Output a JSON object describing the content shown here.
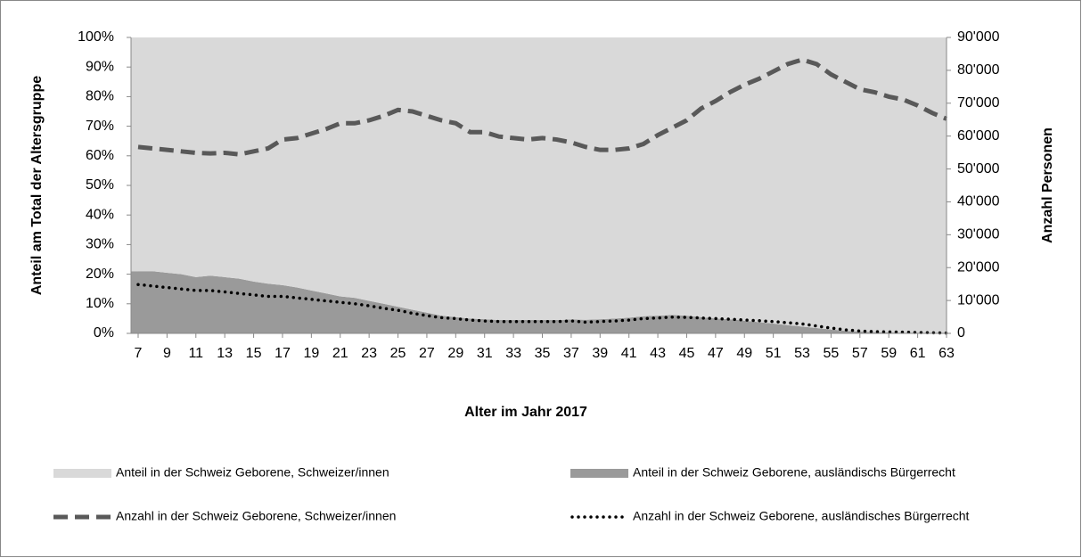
{
  "chart_data": {
    "type": "area",
    "x_label": "Alter im Jahr 2017",
    "y_label": "Anteil am Total der Altersgruppe",
    "y2_label": "Anzahl Personen",
    "x": [
      7,
      8,
      9,
      10,
      11,
      12,
      13,
      14,
      15,
      16,
      17,
      18,
      19,
      20,
      21,
      22,
      23,
      24,
      25,
      26,
      27,
      28,
      29,
      30,
      31,
      32,
      33,
      34,
      35,
      36,
      37,
      38,
      39,
      40,
      41,
      42,
      43,
      44,
      45,
      46,
      47,
      48,
      49,
      50,
      51,
      52,
      53,
      54,
      55,
      56,
      57,
      58,
      59,
      60,
      61,
      62,
      63
    ],
    "xlim": [
      7,
      63
    ],
    "xticks": [
      7,
      9,
      11,
      13,
      15,
      17,
      19,
      21,
      23,
      25,
      27,
      29,
      31,
      33,
      35,
      37,
      39,
      41,
      43,
      45,
      47,
      49,
      51,
      53,
      55,
      57,
      59,
      61,
      63
    ],
    "ylim": [
      0,
      100
    ],
    "yticks": [
      {
        "value": 0,
        "label": "0%"
      },
      {
        "value": 10,
        "label": "10%"
      },
      {
        "value": 20,
        "label": "20%"
      },
      {
        "value": 30,
        "label": "30%"
      },
      {
        "value": 40,
        "label": "40%"
      },
      {
        "value": 50,
        "label": "50%"
      },
      {
        "value": 60,
        "label": "60%"
      },
      {
        "value": 70,
        "label": "70%"
      },
      {
        "value": 80,
        "label": "80%"
      },
      {
        "value": 90,
        "label": "90%"
      },
      {
        "value": 100,
        "label": "100%"
      }
    ],
    "y2lim": [
      0,
      90000
    ],
    "y2ticks": [
      0,
      {
        "value": 10000,
        "label": "10'000"
      },
      {
        "value": 20000,
        "label": "20'000"
      },
      {
        "value": 30000,
        "label": "30'000"
      },
      {
        "value": 40000,
        "label": "40'000"
      },
      {
        "value": 50000,
        "label": "50'000"
      },
      {
        "value": 60000,
        "label": "60'000"
      },
      {
        "value": 70000,
        "label": "70'000"
      },
      {
        "value": 80000,
        "label": "80'000"
      },
      {
        "value": 90000,
        "label": "90'000"
      }
    ],
    "series": [
      {
        "name": "Anteil in der Schweiz Geborene, ausländischs Bürgerrecht",
        "type": "area",
        "color": "#9a9a9a",
        "values": [
          21,
          21,
          20.5,
          20,
          19,
          19.5,
          19,
          18.5,
          17.5,
          16.8,
          16.3,
          15.5,
          14.5,
          13.5,
          12.5,
          12,
          11,
          10,
          9,
          8,
          7,
          6,
          5.5,
          5,
          4.8,
          4.5,
          4.5,
          4.5,
          4.5,
          4.5,
          4.7,
          4.6,
          4.8,
          5,
          5.3,
          5.8,
          6,
          6.2,
          6,
          5.5,
          5,
          4.8,
          4.3,
          3.8,
          3.3,
          2.8,
          2.3,
          1.8,
          1.3,
          0.9,
          0.6,
          0.4,
          0.3,
          0.2,
          0.1,
          0.1,
          0
        ]
      },
      {
        "name": "Anteil in der Schweiz Geborene, Schweizer/innen",
        "type": "area",
        "color": "#d9d9d9",
        "values": [
          79,
          79,
          79.5,
          80,
          81,
          80.5,
          81,
          81.5,
          82.5,
          83.2,
          83.7,
          84.5,
          85.5,
          86.5,
          87.5,
          88,
          89,
          90,
          91,
          92,
          93,
          94,
          94.5,
          95,
          95.2,
          95.5,
          95.5,
          95.5,
          95.5,
          95.5,
          95.3,
          95.4,
          95.2,
          95,
          94.7,
          94.2,
          94,
          93.8,
          94,
          94.5,
          95,
          95.2,
          95.7,
          96.2,
          96.7,
          97.2,
          97.7,
          98.2,
          98.7,
          99.1,
          99.4,
          99.6,
          99.7,
          99.8,
          99.9,
          99.9,
          100
        ]
      },
      {
        "name": "Anzahl in der Schweiz Geborene, Schweizer/innen",
        "type": "line",
        "axis": "y2",
        "style": "dashed",
        "color": "#595959",
        "values": [
          56700,
          56250,
          55800,
          55350,
          54900,
          54720,
          54900,
          54450,
          55350,
          56250,
          58950,
          59400,
          60750,
          62100,
          63900,
          63900,
          64800,
          66150,
          67950,
          67500,
          66150,
          64800,
          63900,
          61200,
          61200,
          59850,
          59400,
          58950,
          59400,
          58950,
          58050,
          56700,
          55800,
          55800,
          56250,
          57600,
          60300,
          62550,
          64800,
          68400,
          70650,
          73350,
          75600,
          77400,
          79650,
          81900,
          83250,
          81900,
          78750,
          76500,
          74250,
          73350,
          72000,
          71100,
          69300,
          67050,
          65250
        ]
      },
      {
        "name": "Anzahl in der Schweiz Geborene, ausländisches Bürgerrecht",
        "type": "line",
        "axis": "y2",
        "style": "dotted",
        "color": "#000000",
        "values": [
          14850,
          14400,
          13950,
          13500,
          13050,
          13050,
          12600,
          12150,
          11700,
          11250,
          11250,
          10800,
          10350,
          9900,
          9450,
          9000,
          8370,
          7650,
          7020,
          6120,
          5400,
          4770,
          4500,
          4050,
          3780,
          3600,
          3600,
          3600,
          3600,
          3600,
          3780,
          3420,
          3600,
          3780,
          4050,
          4500,
          4680,
          4950,
          4860,
          4680,
          4500,
          4320,
          4050,
          3870,
          3600,
          3240,
          2880,
          2250,
          1620,
          1080,
          720,
          540,
          450,
          360,
          270,
          180,
          90
        ]
      }
    ]
  }
}
